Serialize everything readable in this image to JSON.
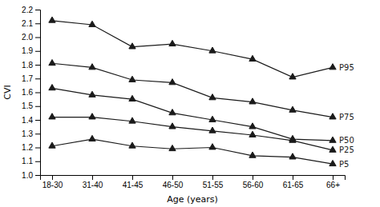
{
  "chart_data": {
    "type": "line",
    "xlabel": "Age (years)",
    "ylabel": "CVI",
    "categories": [
      "18-30",
      "31-40",
      "41-45",
      "46-50",
      "51-55",
      "56-60",
      "61-65",
      "66+"
    ],
    "series": [
      {
        "name": "P95",
        "color": "#1a1a1a",
        "values": [
          2.12,
          2.09,
          1.93,
          1.95,
          1.9,
          1.84,
          1.71,
          1.78
        ]
      },
      {
        "name": "P75",
        "color": "#1a1a1a",
        "values": [
          1.81,
          1.78,
          1.69,
          1.67,
          1.56,
          1.53,
          1.47,
          1.42
        ]
      },
      {
        "name": "P50",
        "color": "#1a1a1a",
        "values": [
          1.63,
          1.58,
          1.55,
          1.45,
          1.4,
          1.35,
          1.26,
          1.25
        ]
      },
      {
        "name": "P25",
        "color": "#1a1a1a",
        "values": [
          1.42,
          1.42,
          1.39,
          1.35,
          1.32,
          1.29,
          1.25,
          1.18
        ]
      },
      {
        "name": "P5",
        "color": "#1a1a1a",
        "values": [
          1.21,
          1.26,
          1.21,
          1.19,
          1.2,
          1.14,
          1.13,
          1.08
        ]
      }
    ],
    "ylim": [
      1.0,
      2.2
    ],
    "yticks": [
      {
        "value": 1.0,
        "label": "1.0"
      },
      1.1,
      1.2,
      1.3,
      1.4,
      1.5,
      1.6,
      1.7,
      1.8,
      1.9,
      {
        "value": 2.0,
        "label": "2.0"
      },
      2.1,
      2.2
    ],
    "marker": "triangle",
    "grid": false
  }
}
